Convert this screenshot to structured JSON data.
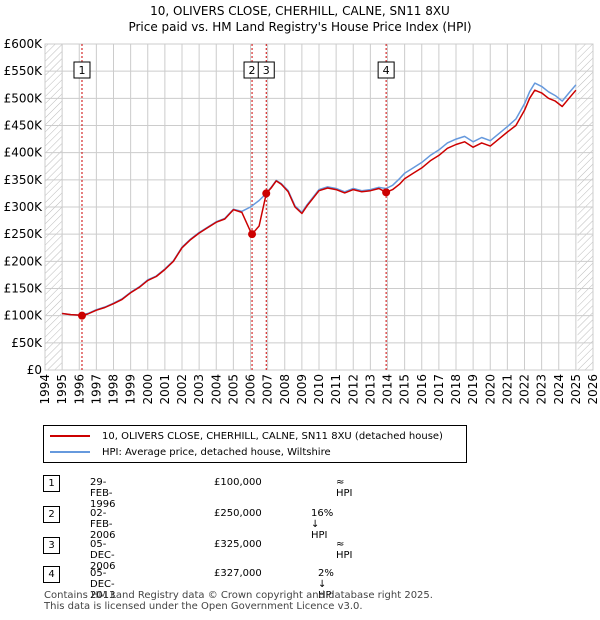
{
  "chart_data": {
    "type": "line",
    "title": "10, OLIVERS CLOSE, CHERHILL, CALNE, SN11 8XU",
    "subtitle": "Price paid vs. HM Land Registry's House Price Index (HPI)",
    "xlabel": "",
    "ylabel": "",
    "xlim": [
      1994,
      2026
    ],
    "ylim": [
      0,
      600000
    ],
    "x_ticks": [
      "1994",
      "1995",
      "1996",
      "1997",
      "1998",
      "1999",
      "2000",
      "2001",
      "2002",
      "2003",
      "2004",
      "2005",
      "2006",
      "2007",
      "2008",
      "2009",
      "2010",
      "2011",
      "2012",
      "2013",
      "2014",
      "2015",
      "2016",
      "2017",
      "2018",
      "2019",
      "2020",
      "2021",
      "2022",
      "2023",
      "2024",
      "2025",
      "2026"
    ],
    "y_ticks": [
      {
        "label": "£0",
        "value": 0
      },
      {
        "label": "£50K",
        "value": 50000
      },
      {
        "label": "£100K",
        "value": 100000
      },
      {
        "label": "£150K",
        "value": 150000
      },
      {
        "label": "£200K",
        "value": 200000
      },
      {
        "label": "£250K",
        "value": 250000
      },
      {
        "label": "£300K",
        "value": 300000
      },
      {
        "label": "£350K",
        "value": 350000
      },
      {
        "label": "£400K",
        "value": 400000
      },
      {
        "label": "£450K",
        "value": 450000
      },
      {
        "label": "£500K",
        "value": 500000
      },
      {
        "label": "£550K",
        "value": 550000
      },
      {
        "label": "£600K",
        "value": 600000
      }
    ],
    "hatched_ranges": [
      [
        1994,
        1995.0
      ],
      [
        2025.1,
        2026
      ]
    ],
    "series": [
      {
        "name": "10, OLIVERS CLOSE, CHERHILL, CALNE, SN11 8XU (detached house)",
        "color": "#cc0000",
        "x": [
          1995.0,
          1995.5,
          1996.0,
          1996.16,
          1996.5,
          1997,
          1997.5,
          1998,
          1998.5,
          1999,
          1999.5,
          2000,
          2000.5,
          2001,
          2001.5,
          2002,
          2002.5,
          2003,
          2003.5,
          2004,
          2004.5,
          2005,
          2005.5,
          2006.0,
          2006.09,
          2006.5,
          2006.92,
          2007.2,
          2007.5,
          2007.8,
          2008.2,
          2008.6,
          2009.0,
          2009.3,
          2009.7,
          2010.0,
          2010.5,
          2011.0,
          2011.5,
          2012.0,
          2012.5,
          2013.0,
          2013.5,
          2013.92,
          2014.3,
          2014.7,
          2015.0,
          2015.5,
          2016.0,
          2016.5,
          2017.0,
          2017.5,
          2018.0,
          2018.5,
          2019.0,
          2019.5,
          2020.0,
          2020.5,
          2021.0,
          2021.5,
          2022.0,
          2022.3,
          2022.6,
          2023.0,
          2023.4,
          2023.8,
          2024.2,
          2024.6,
          2025.0
        ],
        "values": [
          104000,
          102000,
          101000,
          100000,
          103000,
          110000,
          115000,
          122000,
          130000,
          142000,
          152000,
          165000,
          172000,
          185000,
          200000,
          225000,
          240000,
          252000,
          262000,
          272000,
          278000,
          295000,
          290000,
          255000,
          250000,
          265000,
          325000,
          335000,
          348000,
          342000,
          328000,
          300000,
          288000,
          302000,
          318000,
          330000,
          335000,
          332000,
          326000,
          332000,
          328000,
          330000,
          334000,
          327000,
          332000,
          342000,
          352000,
          362000,
          372000,
          385000,
          395000,
          408000,
          415000,
          420000,
          410000,
          418000,
          412000,
          425000,
          438000,
          450000,
          478000,
          500000,
          515000,
          510000,
          500000,
          495000,
          485000,
          500000,
          515000
        ]
      },
      {
        "name": "HPI: Average price, detached house, Wiltshire",
        "color": "#6699dd",
        "x": [
          1995.0,
          1995.5,
          1996.0,
          1996.5,
          1997,
          1997.5,
          1998,
          1998.5,
          1999,
          1999.5,
          2000,
          2000.5,
          2001,
          2001.5,
          2002,
          2002.5,
          2003,
          2003.5,
          2004,
          2004.5,
          2005,
          2005.5,
          2006.0,
          2006.5,
          2006.92,
          2007.2,
          2007.5,
          2007.8,
          2008.2,
          2008.6,
          2009.0,
          2009.3,
          2009.7,
          2010.0,
          2010.5,
          2011.0,
          2011.5,
          2012.0,
          2012.5,
          2013.0,
          2013.5,
          2013.92,
          2014.3,
          2014.7,
          2015.0,
          2015.5,
          2016.0,
          2016.5,
          2017.0,
          2017.5,
          2018.0,
          2018.5,
          2019.0,
          2019.5,
          2020.0,
          2020.5,
          2021.0,
          2021.5,
          2022.0,
          2022.3,
          2022.6,
          2023.0,
          2023.4,
          2023.8,
          2024.2,
          2024.6,
          2025.0
        ],
        "values": [
          104000,
          102000,
          101000,
          104000,
          111000,
          116000,
          123000,
          131000,
          143000,
          153000,
          166000,
          173000,
          186000,
          201000,
          226000,
          241000,
          253000,
          263000,
          273000,
          279000,
          296000,
          292000,
          300000,
          312000,
          325000,
          336000,
          349000,
          343000,
          330000,
          302000,
          290000,
          304000,
          320000,
          332000,
          337000,
          334000,
          328000,
          334000,
          330000,
          332000,
          336000,
          334000,
          340000,
          352000,
          362000,
          372000,
          382000,
          395000,
          405000,
          418000,
          425000,
          430000,
          420000,
          428000,
          422000,
          435000,
          448000,
          462000,
          490000,
          512000,
          528000,
          522000,
          512000,
          505000,
          495000,
          510000,
          525000
        ]
      }
    ],
    "transactions": [
      {
        "id": "1",
        "x": 1996.16,
        "value": 100000
      },
      {
        "id": "2",
        "x": 2006.09,
        "value": 250000
      },
      {
        "id": "3",
        "x": 2006.92,
        "value": 325000
      },
      {
        "id": "4",
        "x": 2013.92,
        "value": 327000
      }
    ]
  },
  "legend": {
    "property_label": "10, OLIVERS CLOSE, CHERHILL, CALNE, SN11 8XU (detached house)",
    "hpi_label": "HPI: Average price, detached house, Wiltshire"
  },
  "table": [
    {
      "num": "1",
      "date": "29-FEB-1996",
      "price": "£100,000",
      "hpi": "≈ HPI"
    },
    {
      "num": "2",
      "date": "02-FEB-2006",
      "price": "£250,000",
      "hpi": "16% ↓ HPI"
    },
    {
      "num": "3",
      "date": "05-DEC-2006",
      "price": "£325,000",
      "hpi": "≈ HPI"
    },
    {
      "num": "4",
      "date": "05-DEC-2013",
      "price": "£327,000",
      "hpi": "2% ↓ HPI"
    }
  ],
  "footer": {
    "line1": "Contains HM Land Registry data © Crown copyright and database right 2025.",
    "line2": "This data is licensed under the Open Government Licence v3.0."
  },
  "colors": {
    "property": "#cc0000",
    "hpi": "#6699dd",
    "grid": "#cccccc",
    "marker_line": "#cc0000"
  }
}
